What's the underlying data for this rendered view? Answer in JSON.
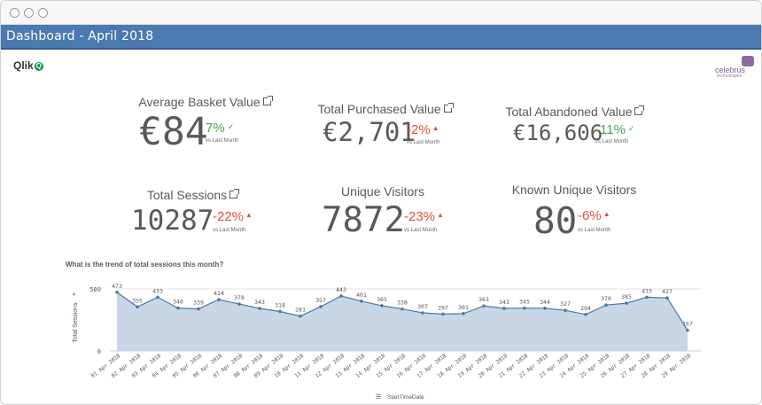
{
  "window_controls": [
    "close-dot",
    "minimize-dot",
    "zoom-dot"
  ],
  "header": {
    "title": "Dashboard - April 2018",
    "background": "#4a7ab0"
  },
  "logos": {
    "qlik_text": "Qlik",
    "qlik_q": "Q",
    "brand_name": "celebrus",
    "brand_sub": "technologies"
  },
  "kpis": [
    {
      "title": "Average Basket Value",
      "value": "€84",
      "delta": "7%",
      "delta_color": "#3fa64d",
      "indicator": "check",
      "note": "vs Last Month",
      "linked": true
    },
    {
      "title": "Total Purchased Value",
      "value": "€2,701",
      "delta": "-2%",
      "delta_color": "#e04e39",
      "indicator": "triangle-up",
      "note": "vs Last Month",
      "linked": true
    },
    {
      "title": "Total Abandoned Value",
      "value": "€16,606",
      "delta": "-11%",
      "delta_color": "#3fa64d",
      "indicator": "check",
      "note": "vs Last Month",
      "linked": true
    },
    {
      "title": "Total Sessions",
      "value": "10287",
      "delta": "-22%",
      "delta_color": "#e04e39",
      "indicator": "triangle-up",
      "note": "vs Last Month",
      "linked": true
    },
    {
      "title": "Unique Visitors",
      "value": "7872",
      "delta": "-23%",
      "delta_color": "#e04e39",
      "indicator": "triangle-up",
      "note": "vs Last Month",
      "linked": false
    },
    {
      "title": "Known Unique Visitors",
      "value": "80",
      "delta": "-6%",
      "delta_color": "#e04e39",
      "indicator": "triangle-up",
      "note": "vs Last Month",
      "linked": false
    }
  ],
  "chart_question": "What is the trend of total sessions this month?",
  "chart_data": {
    "type": "area",
    "title": "",
    "xlabel": "StartTimeDate",
    "ylabel": "Total Sessions",
    "ylim": [
      0,
      500
    ],
    "yticks": [
      0,
      500
    ],
    "grid": true,
    "fill_color": "#c9d6e6",
    "line_color": "#4b78a8",
    "x": [
      "01 Apr 2018",
      "02 Apr 2018",
      "03 Apr 2018",
      "04 Apr 2018",
      "05 Apr 2018",
      "06 Apr 2018",
      "07 Apr 2018",
      "08 Apr 2018",
      "09 Apr 2018",
      "10 Apr 2018",
      "11 Apr 2018",
      "12 Apr 2018",
      "13 Apr 2018",
      "14 Apr 2018",
      "15 Apr 2018",
      "16 Apr 2018",
      "17 Apr 2018",
      "18 Apr 2018",
      "19 Apr 2018",
      "20 Apr 2018",
      "21 Apr 2018",
      "22 Apr 2018",
      "23 Apr 2018",
      "24 Apr 2018",
      "25 Apr 2018",
      "26 Apr 2018",
      "27 Apr 2018",
      "28 Apr 2018",
      "29 Apr 2018"
    ],
    "values": [
      473,
      355,
      433,
      346,
      339,
      414,
      378,
      343,
      318,
      281,
      357,
      443,
      401,
      365,
      338,
      307,
      297,
      301,
      363,
      343,
      345,
      344,
      327,
      294,
      370,
      385,
      433,
      427,
      167
    ]
  }
}
